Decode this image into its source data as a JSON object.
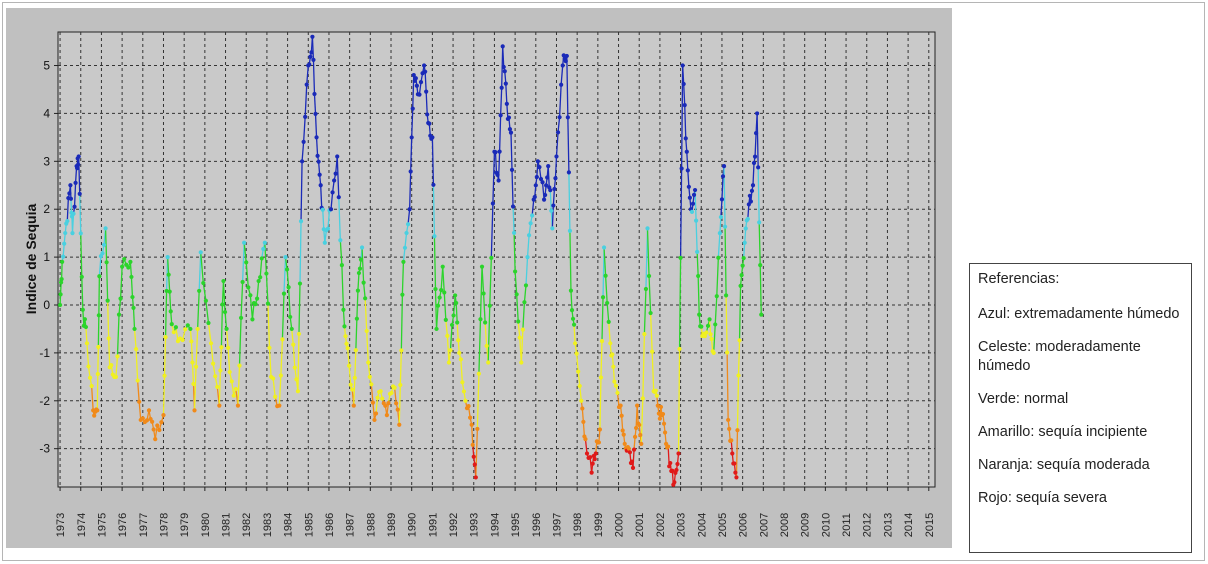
{
  "chart_data": {
    "type": "line",
    "ylabel": "Indice de Sequia",
    "xlabel": "",
    "ylim": [
      -3.8,
      5.7
    ],
    "xlim": [
      1972.9,
      2015.3
    ],
    "yticks": [
      -3,
      -2,
      -1,
      0,
      1,
      2,
      3,
      4,
      5
    ],
    "xticks": [
      "1973",
      "1974",
      "1975",
      "1976",
      "1977",
      "1978",
      "1979",
      "1980",
      "1981",
      "1982",
      "1983",
      "1984",
      "1985",
      "1986",
      "1987",
      "1988",
      "1989",
      "1990",
      "1991",
      "1992",
      "1993",
      "1994",
      "1995",
      "1996",
      "1997",
      "1998",
      "1999",
      "2000",
      "2001",
      "2002",
      "2003",
      "2004",
      "2005",
      "2006",
      "2007",
      "2008",
      "2009",
      "2010",
      "2011",
      "2012",
      "2013",
      "2014",
      "2015"
    ],
    "grid": true,
    "legend_position": "right",
    "color_classes": [
      {
        "label": "Azul: extremadamente húmedo",
        "min": 2,
        "color": "#1a2ab8"
      },
      {
        "label": "Celeste: moderadamente húmedo",
        "min": 1,
        "color": "#4ad0e0"
      },
      {
        "label": "Verde: normal",
        "min": -0.5,
        "color": "#2bd42b"
      },
      {
        "label": "Amarillo: sequía incipiente",
        "min": -2,
        "color": "#f0f020"
      },
      {
        "label": "Naranja: sequía moderada",
        "min": -3,
        "color": "#f08a1a"
      },
      {
        "label": "Rojo: sequía severa",
        "min": -99,
        "color": "#e01a1a"
      }
    ],
    "series_anchor_points": [
      [
        1973.0,
        0.0
      ],
      [
        1973.1,
        0.9
      ],
      [
        1973.3,
        1.7
      ],
      [
        1973.5,
        2.5
      ],
      [
        1973.6,
        1.5
      ],
      [
        1973.8,
        2.9
      ],
      [
        1973.9,
        3.1
      ],
      [
        1974.1,
        -0.1
      ],
      [
        1974.3,
        -0.8
      ],
      [
        1974.6,
        -2.2
      ],
      [
        1974.8,
        -2.2
      ],
      [
        1974.9,
        0.6
      ],
      [
        1975.2,
        1.6
      ],
      [
        1975.4,
        -1.3
      ],
      [
        1975.7,
        -1.5
      ],
      [
        1976.0,
        0.8
      ],
      [
        1976.4,
        0.9
      ],
      [
        1976.6,
        -0.5
      ],
      [
        1976.9,
        -2.4
      ],
      [
        1977.3,
        -2.2
      ],
      [
        1977.6,
        -2.8
      ],
      [
        1978.0,
        -2.3
      ],
      [
        1978.2,
        1.0
      ],
      [
        1978.4,
        -0.4
      ],
      [
        1978.8,
        -0.7
      ],
      [
        1979.3,
        -0.5
      ],
      [
        1979.5,
        -2.2
      ],
      [
        1979.8,
        1.1
      ],
      [
        1980.3,
        -0.8
      ],
      [
        1980.7,
        -2.1
      ],
      [
        1980.9,
        0.5
      ],
      [
        1981.2,
        -1.4
      ],
      [
        1981.6,
        -2.1
      ],
      [
        1981.9,
        1.3
      ],
      [
        1982.3,
        -0.3
      ],
      [
        1982.6,
        0.5
      ],
      [
        1982.9,
        1.3
      ],
      [
        1983.2,
        -1.5
      ],
      [
        1983.6,
        -2.1
      ],
      [
        1983.9,
        1.0
      ],
      [
        1984.2,
        -0.5
      ],
      [
        1984.5,
        -1.8
      ],
      [
        1984.7,
        3.0
      ],
      [
        1985.0,
        5.0
      ],
      [
        1985.2,
        5.6
      ],
      [
        1985.4,
        3.5
      ],
      [
        1985.6,
        2.5
      ],
      [
        1985.8,
        1.3
      ],
      [
        1986.1,
        2.0
      ],
      [
        1986.4,
        3.1
      ],
      [
        1986.7,
        -0.1
      ],
      [
        1986.9,
        -0.9
      ],
      [
        1987.2,
        -2.1
      ],
      [
        1987.4,
        0.3
      ],
      [
        1987.6,
        1.2
      ],
      [
        1987.9,
        -1.2
      ],
      [
        1988.2,
        -2.4
      ],
      [
        1988.5,
        -1.8
      ],
      [
        1988.8,
        -2.3
      ],
      [
        1989.1,
        -1.7
      ],
      [
        1989.4,
        -2.5
      ],
      [
        1989.6,
        0.9
      ],
      [
        1989.9,
        2.0
      ],
      [
        1990.1,
        4.8
      ],
      [
        1990.3,
        4.4
      ],
      [
        1990.6,
        5.0
      ],
      [
        1990.8,
        3.8
      ],
      [
        1991.0,
        3.5
      ],
      [
        1991.2,
        -0.5
      ],
      [
        1991.5,
        0.8
      ],
      [
        1991.8,
        -1.2
      ],
      [
        1992.1,
        0.2
      ],
      [
        1992.3,
        -1.0
      ],
      [
        1992.6,
        -2.0
      ],
      [
        1992.9,
        -2.5
      ],
      [
        1993.1,
        -3.6
      ],
      [
        1993.4,
        0.8
      ],
      [
        1993.7,
        -1.2
      ],
      [
        1994.0,
        3.2
      ],
      [
        1994.2,
        2.6
      ],
      [
        1994.4,
        5.4
      ],
      [
        1994.6,
        4.2
      ],
      [
        1994.8,
        3.6
      ],
      [
        1995.0,
        0.7
      ],
      [
        1995.3,
        -1.2
      ],
      [
        1995.6,
        1.0
      ],
      [
        1995.9,
        2.2
      ],
      [
        1996.1,
        3.0
      ],
      [
        1996.4,
        2.2
      ],
      [
        1996.6,
        2.9
      ],
      [
        1996.8,
        1.6
      ],
      [
        1997.0,
        3.1
      ],
      [
        1997.3,
        5.0
      ],
      [
        1997.5,
        5.2
      ],
      [
        1997.7,
        0.3
      ],
      [
        1997.9,
        -0.8
      ],
      [
        1998.2,
        -2.0
      ],
      [
        1998.4,
        -2.8
      ],
      [
        1998.7,
        -3.5
      ],
      [
        1998.9,
        -3.1
      ],
      [
        1999.1,
        -2.6
      ],
      [
        1999.3,
        1.2
      ],
      [
        1999.6,
        -0.8
      ],
      [
        1999.8,
        -1.6
      ],
      [
        2000.1,
        -2.1
      ],
      [
        2000.3,
        -2.9
      ],
      [
        2000.5,
        -3.0
      ],
      [
        2000.7,
        -3.4
      ],
      [
        2000.9,
        -2.1
      ],
      [
        2001.1,
        -2.9
      ],
      [
        2001.4,
        1.6
      ],
      [
        2001.7,
        -1.8
      ],
      [
        2001.9,
        -2.1
      ],
      [
        2002.1,
        -2.3
      ],
      [
        2002.3,
        -2.9
      ],
      [
        2002.5,
        -3.3
      ],
      [
        2002.7,
        -3.7
      ],
      [
        2002.9,
        -3.1
      ],
      [
        2003.1,
        5.0
      ],
      [
        2003.3,
        3.2
      ],
      [
        2003.5,
        2.0
      ],
      [
        2003.7,
        2.4
      ],
      [
        2003.9,
        -0.2
      ],
      [
        2004.1,
        -0.6
      ],
      [
        2004.4,
        -0.3
      ],
      [
        2004.6,
        -1.0
      ],
      [
        2004.9,
        1.5
      ],
      [
        2005.1,
        2.9
      ],
      [
        2005.3,
        -2.4
      ],
      [
        2005.5,
        -3.1
      ],
      [
        2005.7,
        -3.6
      ],
      [
        2005.9,
        0.4
      ],
      [
        2006.1,
        1.3
      ],
      [
        2006.3,
        2.1
      ],
      [
        2006.5,
        2.5
      ],
      [
        2006.7,
        4.0
      ],
      [
        2006.9,
        -0.2
      ]
    ]
  },
  "legend": {
    "title": "Referencias:",
    "items": [
      "Azul: extremadamente húmedo",
      "Celeste: moderadamente húmedo",
      "Verde: normal",
      "Amarillo: sequía incipiente",
      "Naranja: sequía moderada",
      "Rojo: sequía severa"
    ]
  }
}
